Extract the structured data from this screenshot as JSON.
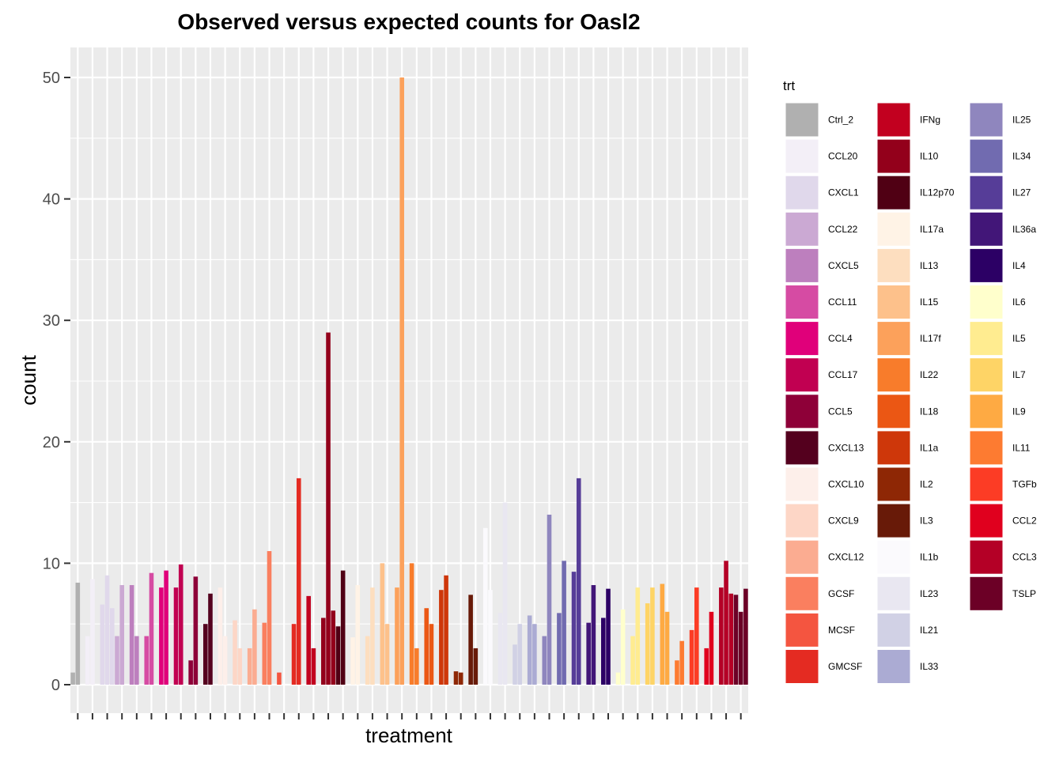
{
  "chart_data": {
    "type": "bar",
    "title": "Observed versus expected counts for Oasl2",
    "xlabel": "treatment",
    "ylabel": "count",
    "ylim": [
      0,
      53
    ],
    "yticks": [
      0,
      10,
      20,
      30,
      40,
      50
    ],
    "legend_title": "trt",
    "legend_position": "right",
    "panel_background": "#EBEBEB",
    "grid_color": "#FFFFFF",
    "categories": [
      {
        "name": "Ctrl_2",
        "color": "#B0B0B0"
      },
      {
        "name": "CCL20",
        "color": "#F3EFF7"
      },
      {
        "name": "CXCL1",
        "color": "#E0D8EB"
      },
      {
        "name": "CCL22",
        "color": "#CBA9D3"
      },
      {
        "name": "CXCL5",
        "color": "#BD7FBE"
      },
      {
        "name": "CCL11",
        "color": "#D64BA3"
      },
      {
        "name": "CCL4",
        "color": "#E0007A"
      },
      {
        "name": "CCL17",
        "color": "#C10051"
      },
      {
        "name": "CCL5",
        "color": "#8E0038"
      },
      {
        "name": "CXCL13",
        "color": "#54001E"
      },
      {
        "name": "CXCL10",
        "color": "#FDEFEA"
      },
      {
        "name": "CXCL9",
        "color": "#FDD6C6"
      },
      {
        "name": "CXCL12",
        "color": "#FBAC91"
      },
      {
        "name": "GCSF",
        "color": "#FA7F5F"
      },
      {
        "name": "MCSF",
        "color": "#F45540"
      },
      {
        "name": "GMCSF",
        "color": "#E42B22"
      },
      {
        "name": "IFNg",
        "color": "#C2001F"
      },
      {
        "name": "IL10",
        "color": "#93001B"
      },
      {
        "name": "IL12p70",
        "color": "#500014"
      },
      {
        "name": "IL17a",
        "color": "#FFF3E6"
      },
      {
        "name": "IL13",
        "color": "#FDDEBF"
      },
      {
        "name": "IL15",
        "color": "#FDC18B"
      },
      {
        "name": "IL17f",
        "color": "#FCA15B"
      },
      {
        "name": "IL22",
        "color": "#F87C2B"
      },
      {
        "name": "IL18",
        "color": "#EB5714"
      },
      {
        "name": "IL1a",
        "color": "#CE370A"
      },
      {
        "name": "IL2",
        "color": "#8E2705"
      },
      {
        "name": "IL3",
        "color": "#681A08"
      },
      {
        "name": "IL1b",
        "color": "#FBFAFD"
      },
      {
        "name": "IL23",
        "color": "#E9E7F1"
      },
      {
        "name": "IL21",
        "color": "#D1D1E5"
      },
      {
        "name": "IL33",
        "color": "#ABABD3"
      },
      {
        "name": "IL25",
        "color": "#8F86BE"
      },
      {
        "name": "IL34",
        "color": "#716BB0"
      },
      {
        "name": "IL27",
        "color": "#563D98"
      },
      {
        "name": "IL36a",
        "color": "#421678"
      },
      {
        "name": "IL4",
        "color": "#2C0065"
      },
      {
        "name": "IL6",
        "color": "#FFFFCC"
      },
      {
        "name": "IL5",
        "color": "#FFEC90"
      },
      {
        "name": "IL7",
        "color": "#FED466"
      },
      {
        "name": "IL9",
        "color": "#FEAA43"
      },
      {
        "name": "IL11",
        "color": "#FD7B31"
      },
      {
        "name": "TGFb",
        "color": "#FC3C25"
      },
      {
        "name": "CCL2",
        "color": "#E0001E"
      },
      {
        "name": "CCL3",
        "color": "#B40026"
      },
      {
        "name": "TSLP",
        "color": "#6C0026"
      }
    ],
    "series": [
      {
        "values": [
          1,
          4,
          6.6,
          4,
          8.2,
          4.0,
          8.0,
          8.0,
          2.0,
          5.0,
          8.0,
          5.3,
          3.0,
          5.1,
          1.0,
          5.0,
          7.3,
          5.5,
          4.8,
          3.9,
          4.0,
          10.0,
          8.0,
          10.0,
          6.3,
          7.8,
          1.1,
          7.4,
          12.9,
          5.9,
          3.3,
          5.7,
          4.0,
          5.9,
          9.3,
          5.1,
          5.5,
          1.0,
          4.0,
          6.7,
          8.3,
          2.0,
          4.5,
          3.0,
          8.0,
          7.4
        ]
      },
      {
        "values": [
          8.4,
          8.7,
          9.0,
          8.2,
          4.0,
          9.2,
          9.4,
          9.9,
          8.9,
          7.5,
          4.0,
          3.0,
          6.2,
          11.0,
          0,
          17.0,
          3.0,
          29.0,
          9.4,
          8.2,
          8.0,
          5.0,
          50.0,
          3.0,
          5.0,
          9.0,
          1.0,
          3.0,
          7.8,
          15.0,
          5.0,
          5.0,
          14.0,
          10.2,
          17.0,
          8.2,
          7.9,
          6.2,
          8.0,
          8.0,
          6.0,
          3.6,
          8.0,
          6.0,
          10.2,
          6.0
        ]
      },
      {
        "values": [
          0,
          0,
          6.3,
          0,
          0,
          0,
          0,
          0,
          0,
          0,
          0,
          0,
          0,
          0,
          0,
          0,
          0,
          6.1,
          0,
          0,
          0,
          0,
          0,
          0,
          0,
          0,
          0,
          0,
          0,
          0,
          0,
          0,
          0,
          0,
          0,
          0,
          0,
          0,
          0,
          0,
          0,
          0,
          0,
          0,
          7.5,
          7.9
        ]
      }
    ]
  }
}
